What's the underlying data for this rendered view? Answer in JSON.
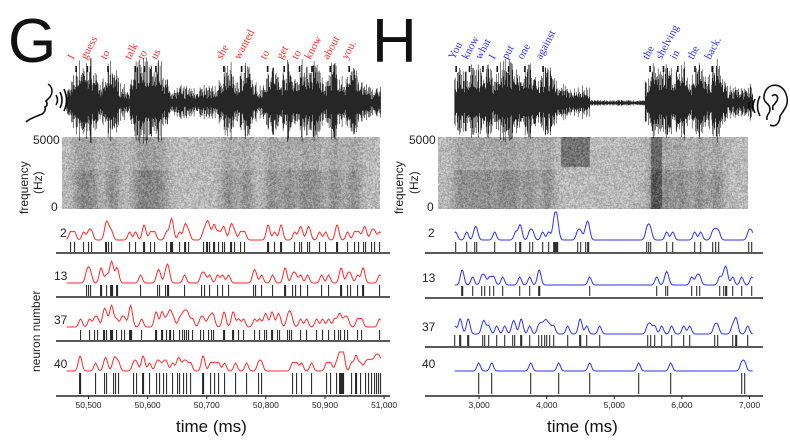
{
  "chart_data": [
    {
      "type": "line",
      "panel_label": "G",
      "role": "speaker",
      "color": "#ff2a2a",
      "words": [
        "I",
        "guess",
        "to",
        "talk",
        "to",
        "us",
        "she",
        "wanted",
        "to",
        "get",
        "to",
        "know",
        "about",
        "you."
      ],
      "word_times_ms": [
        50479,
        50498,
        50533,
        50579,
        50595,
        50614,
        50729,
        50759,
        50803,
        50831,
        50857,
        50878,
        50909,
        50941
      ],
      "time_range_ms": [
        50445,
        51010
      ],
      "signal_range_ms": [
        50463,
        50995
      ],
      "xticks": [
        50500,
        50600,
        50700,
        50800,
        50900,
        51000
      ],
      "xtick_labels": [
        "50,500",
        "50,600",
        "50,700",
        "50,800",
        "50,900",
        "51,000"
      ],
      "xlabel": "time (ms)",
      "spectrogram": {
        "ylabel": "frequency (Hz)",
        "ylabel_line1": "frequency",
        "ylabel_line2": "(Hz)",
        "ymax_label": "5000",
        "ymin_label": "0"
      },
      "neuron_axis_label": "neuron number",
      "neurons": [
        {
          "id": "2",
          "label": "2",
          "spike_density": 0.55
        },
        {
          "id": "13",
          "label": "13",
          "spike_density": 0.45
        },
        {
          "id": "37",
          "label": "37",
          "spike_density": 0.6
        },
        {
          "id": "40",
          "label": "40",
          "spike_density": 0.5
        }
      ]
    },
    {
      "type": "line",
      "panel_label": "H",
      "role": "listener",
      "color": "#3030ff",
      "words": [
        "You",
        "know",
        "what",
        "I",
        "put",
        "one",
        "against",
        "the",
        "shelving",
        "in",
        "the",
        "back."
      ],
      "word_times_ms": [
        2661,
        2859,
        3057,
        3269,
        3438,
        3678,
        3947,
        5530,
        5728,
        5940,
        6194,
        6449
      ],
      "time_range_ms": [
        2200,
        7200
      ],
      "signal_range_ms": [
        2640,
        7050
      ],
      "xticks": [
        3000,
        4000,
        5000,
        6000,
        7000
      ],
      "xtick_labels": [
        "3,000",
        "4,000",
        "5,000",
        "6,000",
        "7,000"
      ],
      "xlabel": "time (ms)",
      "spectrogram": {
        "ylabel": "frequency (Hz)",
        "ylabel_line1": "frequency",
        "ylabel_line2": "(Hz)",
        "ymax_label": "5000",
        "ymin_label": "0"
      },
      "neurons": [
        {
          "id": "2",
          "label": "2",
          "spike_density": 0.5
        },
        {
          "id": "13",
          "label": "13",
          "spike_density": 0.3
        },
        {
          "id": "37",
          "label": "37",
          "spike_density": 0.55
        },
        {
          "id": "40",
          "label": "40",
          "spike_density": 0.08
        }
      ]
    }
  ]
}
